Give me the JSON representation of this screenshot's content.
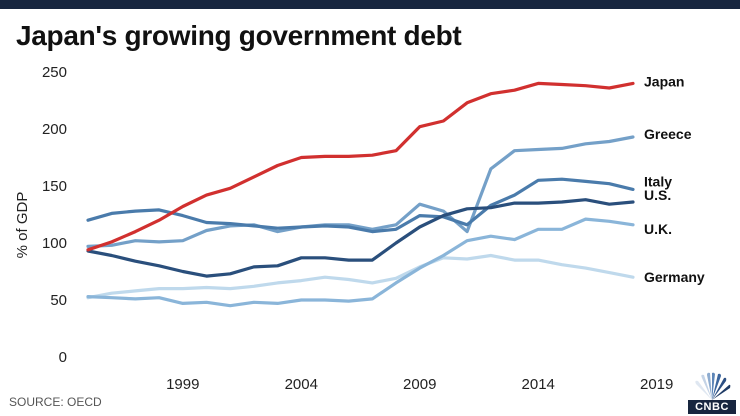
{
  "header": {
    "title": "Japan's growing government debt"
  },
  "footer": {
    "source": "SOURCE: OECD",
    "brand": "CNBC"
  },
  "chart_data": {
    "type": "line",
    "title": "Japan's growing government debt",
    "xlabel": "",
    "ylabel": "% of GDP",
    "xlim": [
      1995.5,
      2019
    ],
    "ylim": [
      0,
      250
    ],
    "x_ticks": [
      1999,
      2004,
      2009,
      2014,
      2019
    ],
    "y_ticks": [
      0,
      50,
      100,
      150,
      200,
      250
    ],
    "grid": false,
    "x": [
      1995,
      1996,
      1997,
      1998,
      1999,
      2000,
      2001,
      2002,
      2003,
      2004,
      2005,
      2006,
      2007,
      2008,
      2009,
      2010,
      2011,
      2012,
      2013,
      2014,
      2015,
      2016,
      2017,
      2018
    ],
    "series": [
      {
        "name": "Japan",
        "color": "#d1302f",
        "values": [
          94,
          101,
          110,
          120,
          132,
          142,
          148,
          158,
          168,
          175,
          176,
          176,
          177,
          181,
          202,
          207,
          223,
          231,
          234,
          240,
          239,
          238,
          236,
          240
        ]
      },
      {
        "name": "Greece",
        "color": "#74a0c8",
        "values": [
          97,
          98,
          102,
          101,
          102,
          111,
          115,
          116,
          110,
          114,
          116,
          116,
          112,
          116,
          134,
          128,
          110,
          165,
          181,
          182,
          183,
          187,
          189,
          193
        ]
      },
      {
        "name": "Italy",
        "color": "#4a7bab",
        "values": [
          120,
          126,
          128,
          129,
          124,
          118,
          117,
          115,
          113,
          114,
          115,
          114,
          110,
          112,
          124,
          123,
          116,
          133,
          142,
          155,
          156,
          154,
          152,
          147
        ]
      },
      {
        "name": "U.S.",
        "color": "#2a4f7c",
        "values": [
          93,
          89,
          84,
          80,
          75,
          71,
          73,
          79,
          80,
          87,
          87,
          85,
          85,
          100,
          114,
          124,
          130,
          131,
          135,
          135,
          136,
          138,
          134,
          136
        ]
      },
      {
        "name": "U.K.",
        "color": "#8ab5d9",
        "values": [
          53,
          52,
          51,
          52,
          47,
          48,
          45,
          48,
          47,
          50,
          50,
          49,
          51,
          65,
          78,
          89,
          102,
          106,
          103,
          112,
          112,
          121,
          119,
          116
        ]
      },
      {
        "name": "Germany",
        "color": "#bfd9ec",
        "values": [
          52,
          56,
          58,
          60,
          60,
          61,
          60,
          62,
          65,
          67,
          70,
          68,
          65,
          69,
          79,
          87,
          86,
          89,
          85,
          85,
          81,
          78,
          74,
          70
        ]
      }
    ]
  }
}
